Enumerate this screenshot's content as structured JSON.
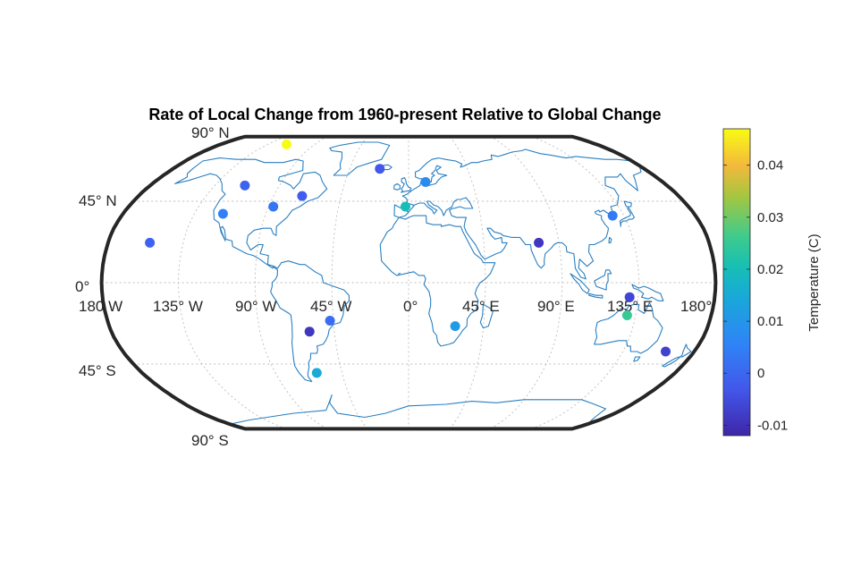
{
  "chart_data": {
    "type": "scatter",
    "title": "Rate of Local Change from 1960-present Relative to Global Change",
    "projection": "robinson",
    "basemap": "world coastlines",
    "grid": true,
    "lat_labels": [
      "90° N",
      "45° N",
      "0°",
      "45° S",
      "90° S"
    ],
    "lon_labels": [
      "180 W",
      "135° W",
      "90° W",
      "45° W",
      "0°",
      "45° E",
      "90° E",
      "135° E",
      "180°"
    ],
    "colorbar": {
      "label": "Temperature (C)",
      "range": [
        -0.012,
        0.047
      ],
      "ticks": [
        "-0.01",
        "0",
        "0.01",
        "0.02",
        "0.03",
        "0.04"
      ],
      "tick_values": [
        -0.01,
        0,
        0.01,
        0.02,
        0.03,
        0.04
      ],
      "colormap": "parula",
      "placement": "right"
    },
    "points": [
      {
        "lon": -117,
        "lat": 81,
        "value": 0.047
      },
      {
        "lon": -114,
        "lat": 54,
        "value": -0.001
      },
      {
        "lon": -117,
        "lat": 38,
        "value": 0.005
      },
      {
        "lon": -155,
        "lat": 22,
        "value": -0.001
      },
      {
        "lon": -87,
        "lat": 42,
        "value": 0.003
      },
      {
        "lon": -71,
        "lat": 48,
        "value": -0.002
      },
      {
        "lon": -22,
        "lat": 64,
        "value": -0.003
      },
      {
        "lon": 12,
        "lat": 56,
        "value": 0.008
      },
      {
        "lon": -2,
        "lat": 42,
        "value": 0.02
      },
      {
        "lon": 78,
        "lat": 22,
        "value": -0.009
      },
      {
        "lon": 128,
        "lat": 37,
        "value": 0.004
      },
      {
        "lon": 130,
        "lat": -8,
        "value": -0.006
      },
      {
        "lon": 130,
        "lat": -18,
        "value": 0.025
      },
      {
        "lon": 162,
        "lat": -38,
        "value": -0.007
      },
      {
        "lon": 28,
        "lat": -24,
        "value": 0.011
      },
      {
        "lon": -47,
        "lat": -21,
        "value": 0.001
      },
      {
        "lon": -60,
        "lat": -27,
        "value": -0.009
      },
      {
        "lon": -62,
        "lat": -50,
        "value": 0.015
      }
    ]
  }
}
